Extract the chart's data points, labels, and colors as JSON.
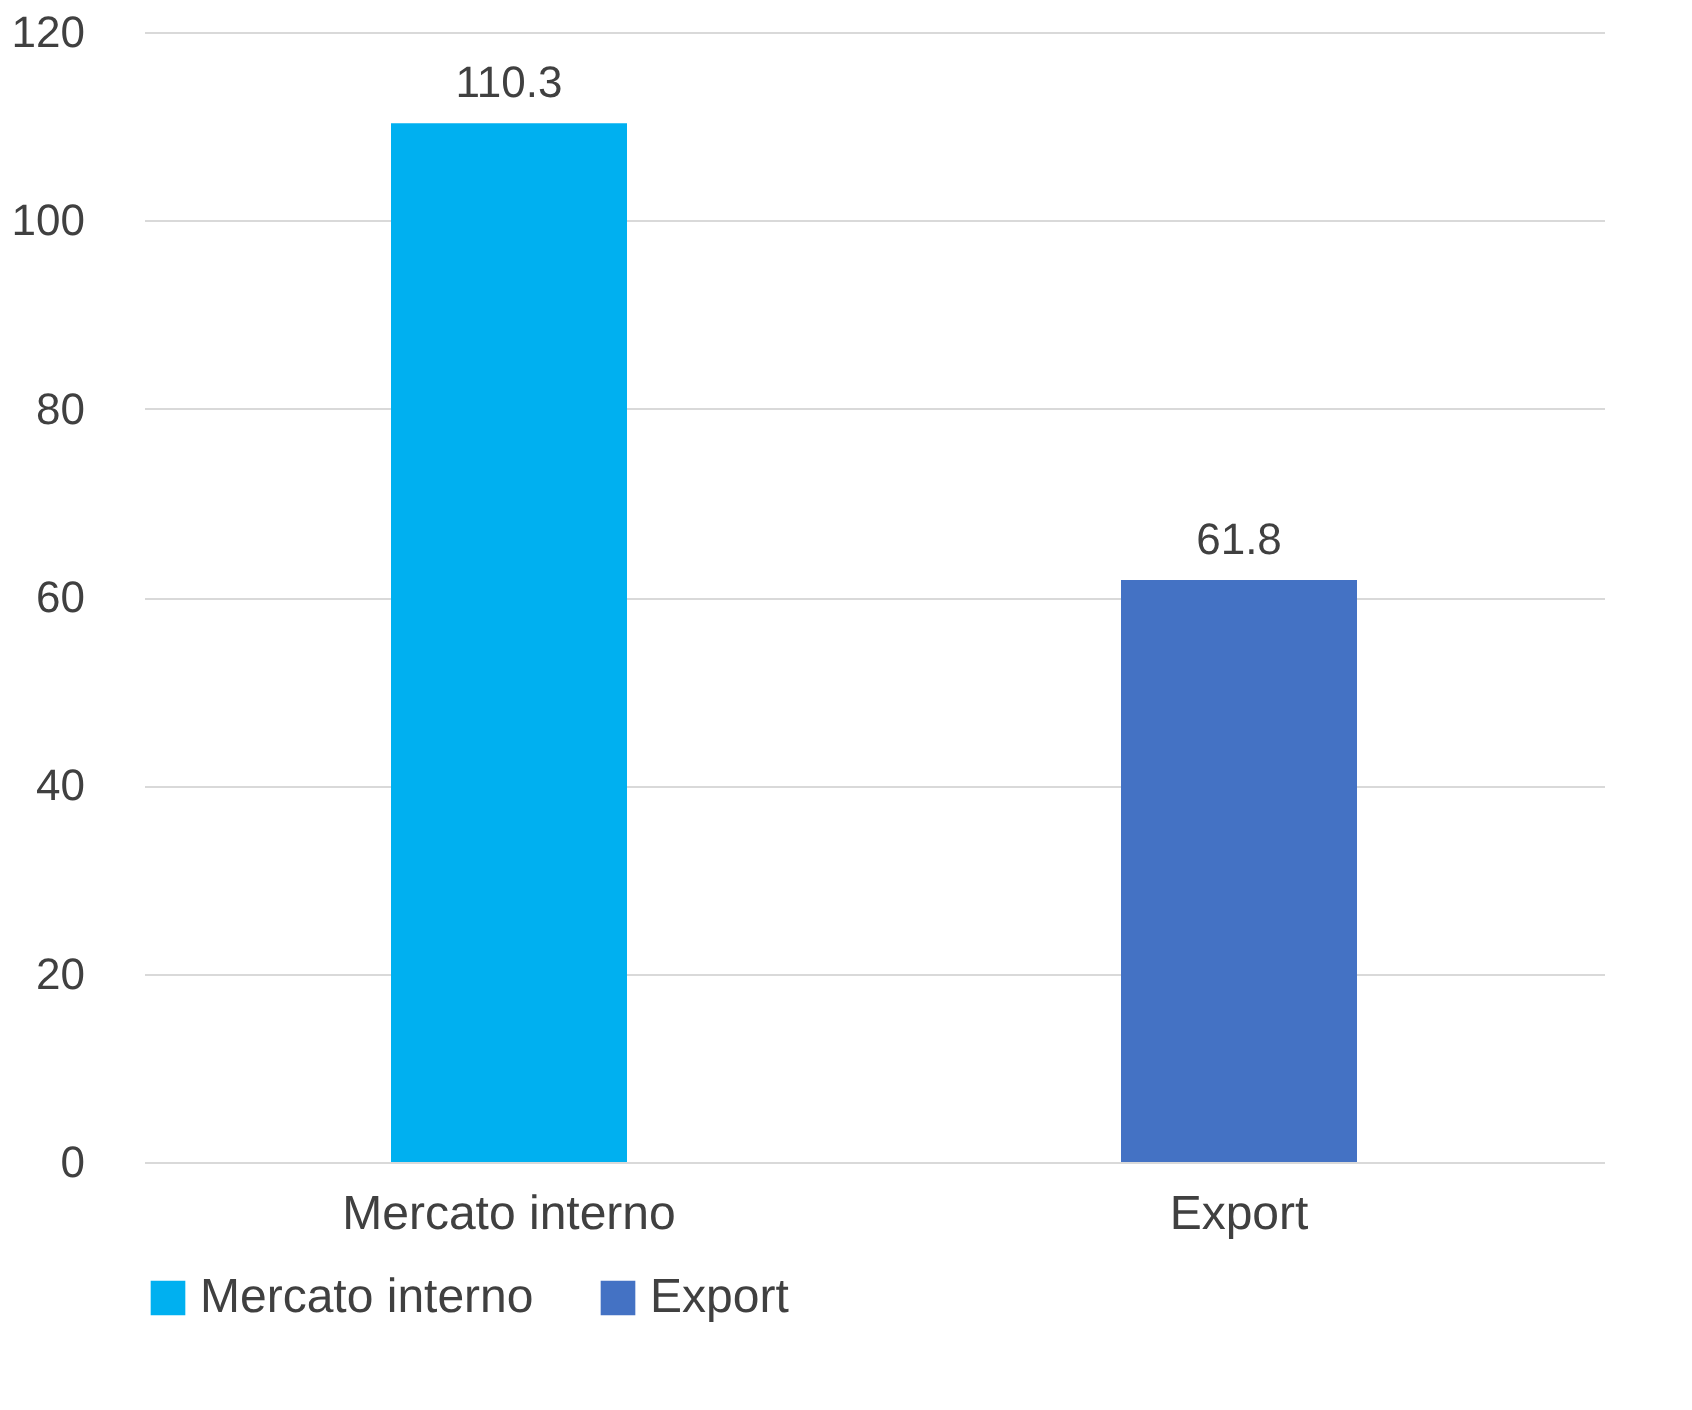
{
  "chart_data": {
    "type": "bar",
    "categories": [
      "Mercato interno",
      "Export"
    ],
    "series": [
      {
        "name": "Mercato interno",
        "color": "#00b0f0",
        "values": [
          110.3,
          null
        ]
      },
      {
        "name": "Export",
        "color": "#4472c4",
        "values": [
          null,
          61.8
        ]
      }
    ],
    "ylim": [
      0,
      120
    ],
    "yticks": [
      0,
      20,
      40,
      60,
      80,
      100,
      120
    ],
    "grid": "y",
    "legend": "bottom",
    "data_labels": true
  }
}
